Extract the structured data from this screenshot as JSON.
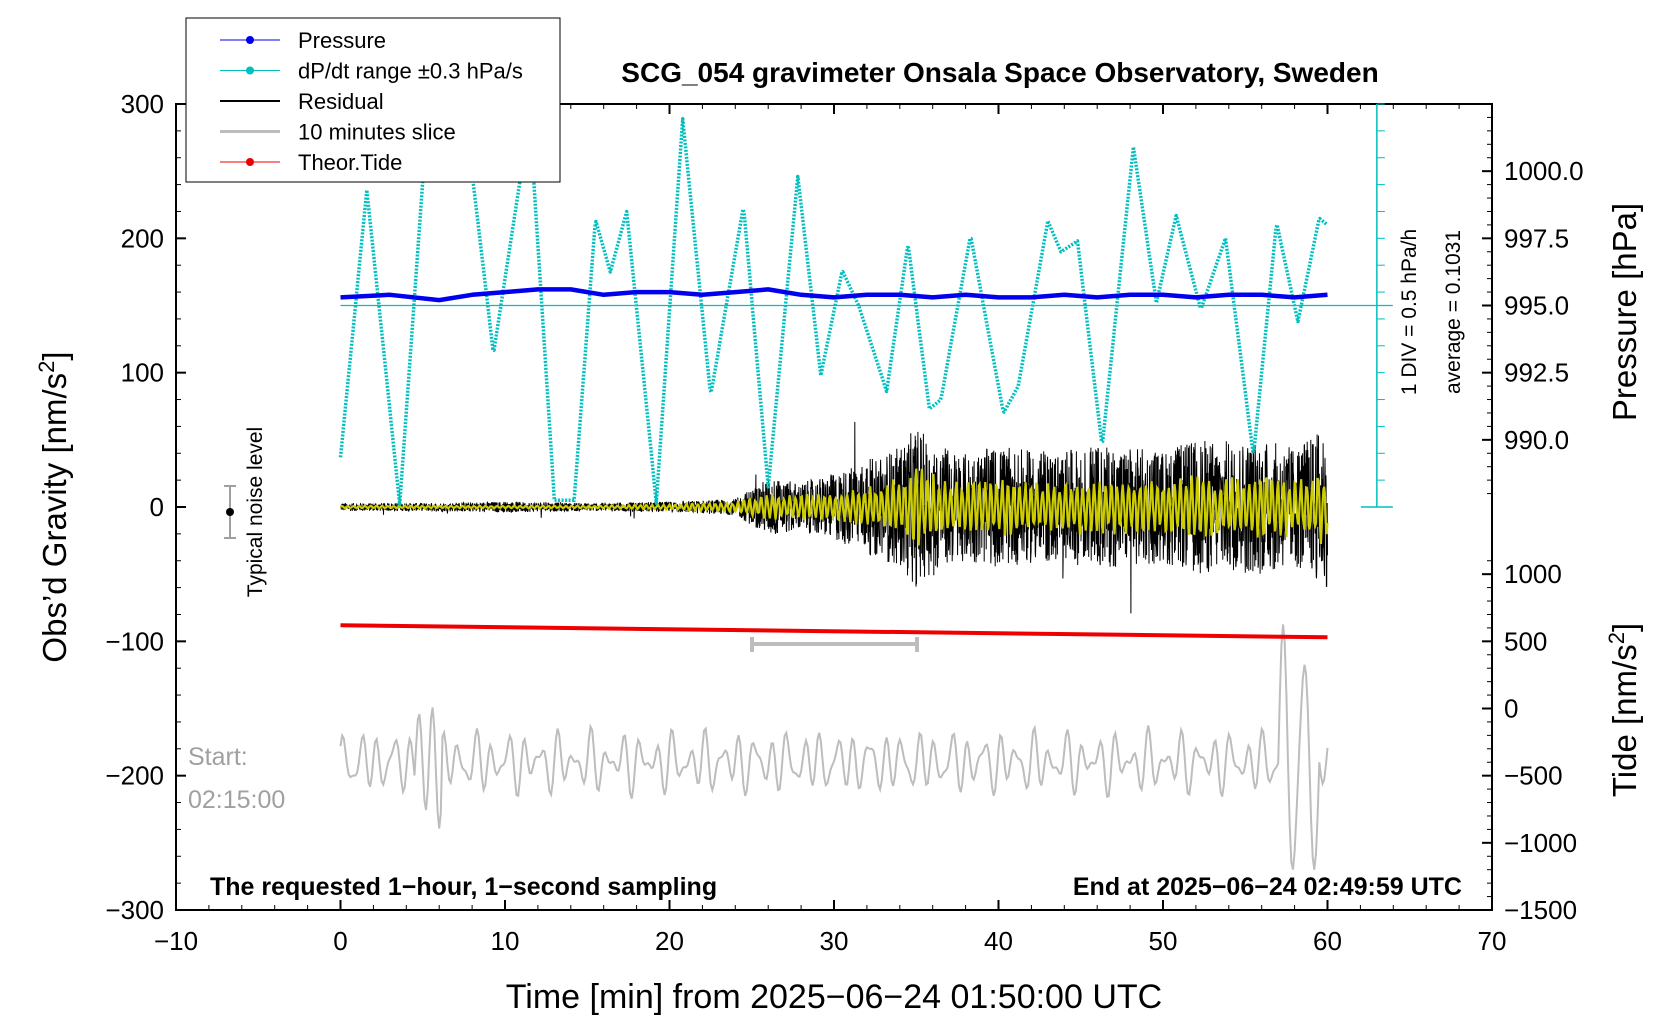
{
  "chart_data": {
    "type": "line",
    "title": "SCG_054 gravimeter Onsala Space Observatory, Sweden",
    "xlabel": "Time [min] from 2025−06−24 01:50:00 UTC",
    "ylabel_left": "Obs’d Gravity [nm/s²]",
    "ylabel_left_main": "Obs’d Gravity [nm/s",
    "ylabel_left_sup": "2",
    "ylabel_left_end": "]",
    "ylabel_right_pressure": "Pressure [hPa]",
    "ylabel_right_tide": "Tide [nm/s²]",
    "ylabel_right_tide_main": "Tide [nm/s",
    "ylabel_right_tide_sup": "2",
    "ylabel_right_tide_end": "]",
    "xlim": [
      -10,
      70
    ],
    "ylim": [
      -300,
      300
    ],
    "x_ticks": [
      -10,
      0,
      10,
      20,
      30,
      40,
      50,
      60,
      70
    ],
    "x_tick_labels": [
      "−10",
      "0",
      "10",
      "20",
      "30",
      "40",
      "50",
      "60",
      "70"
    ],
    "y_ticks": [
      -300,
      -200,
      -100,
      0,
      100,
      200,
      300
    ],
    "y_tick_labels": [
      "−300",
      "−200",
      "−100",
      "0",
      "100",
      "200",
      "300"
    ],
    "pressure_axis": {
      "ticks": [
        990.0,
        992.5,
        995.0,
        997.5,
        1000.0
      ],
      "labels": [
        "990.0",
        "992.5",
        "995.0",
        "997.5",
        "1000.0"
      ],
      "gravity_at_990": 50,
      "gravity_per_hPa": 20
    },
    "tide_axis": {
      "ticks": [
        -1500,
        -1000,
        -500,
        0,
        500,
        1000
      ],
      "labels": [
        "−1500",
        "−1000",
        "−500",
        "0",
        "500",
        "1000"
      ],
      "gravity_per_unit": 0.1,
      "offset": -150
    },
    "legend": {
      "position": "top-left",
      "entries": [
        {
          "label": "Pressure",
          "color": "#0000ee",
          "marker": true
        },
        {
          "label": "dP/dt range ±0.3 hPa/s",
          "color": "#00bfbf",
          "marker": true
        },
        {
          "label": "Residual",
          "color": "#000000",
          "marker": false
        },
        {
          "label": "10 minutes slice",
          "color": "#bdbdbd",
          "marker": false
        },
        {
          "label": "Theor.Tide",
          "color": "#ee0000",
          "marker": true
        }
      ]
    },
    "series": [
      {
        "name": "Pressure",
        "color": "#0000ee",
        "x": [
          0,
          3,
          6,
          8,
          10,
          12,
          14,
          16,
          18,
          20,
          22,
          24,
          26,
          28,
          30,
          32,
          34,
          36,
          38,
          40,
          42,
          44,
          46,
          48,
          50,
          52,
          54,
          56,
          58,
          60
        ],
        "y": [
          995.3,
          995.4,
          995.2,
          995.4,
          995.5,
          995.6,
          995.6,
          995.4,
          995.5,
          995.5,
          995.4,
          995.5,
          995.6,
          995.4,
          995.3,
          995.4,
          995.4,
          995.3,
          995.4,
          995.3,
          995.3,
          995.4,
          995.3,
          995.4,
          995.4,
          995.3,
          995.4,
          995.4,
          995.3,
          995.4
        ]
      },
      {
        "name": "dP/dt",
        "color": "#00bfbf",
        "x": [
          0,
          1.6,
          3.6,
          5.3,
          7.5,
          9.3,
          11.5,
          13,
          14.2,
          15.5,
          16.4,
          17.4,
          19.2,
          20.8,
          22.5,
          24.5,
          26,
          27.8,
          29.2,
          30.5,
          31.5,
          33.2,
          34.5,
          35.8,
          36.5,
          38.3,
          40.3,
          41.2,
          43,
          43.8,
          44.8,
          46.3,
          48.2,
          49.6,
          50.8,
          52.3,
          53.8,
          55.5,
          56.9,
          58.2,
          59.5,
          60
        ],
        "y": [
          37,
          236,
          2,
          295,
          300,
          114,
          290,
          5,
          5,
          214,
          175,
          220,
          3,
          289,
          83,
          224,
          15,
          246,
          98,
          176,
          150,
          86,
          196,
          73,
          80,
          202,
          70,
          90,
          213,
          190,
          198,
          45,
          268,
          152,
          217,
          147,
          200,
          38,
          212,
          138,
          215,
          210
        ]
      },
      {
        "name": "Residual",
        "color": "#000000",
        "x": [
          0,
          5,
          10,
          15,
          20,
          24,
          26,
          28,
          30,
          32,
          34,
          35,
          36,
          38,
          40,
          42,
          44,
          46,
          48,
          50,
          52,
          54,
          56,
          58,
          60
        ],
        "amplitude": [
          3,
          3,
          4,
          3,
          4,
          6,
          22,
          18,
          25,
          35,
          45,
          60,
          48,
          40,
          45,
          42,
          42,
          45,
          45,
          42,
          50,
          50,
          50,
          45,
          60
        ]
      },
      {
        "name": "Residual (filtered)",
        "color": "#cccc00",
        "x": [
          0,
          5,
          10,
          15,
          20,
          24,
          26,
          28,
          30,
          32,
          34,
          35,
          36,
          38,
          40,
          42,
          44,
          46,
          48,
          50,
          52,
          54,
          56,
          58,
          60
        ],
        "amplitude": [
          1,
          1,
          1,
          1,
          2,
          4,
          10,
          10,
          12,
          16,
          22,
          35,
          25,
          20,
          22,
          20,
          20,
          22,
          22,
          20,
          24,
          24,
          26,
          22,
          30
        ]
      },
      {
        "name": "Theor.Tide",
        "color": "#ee0000",
        "x": [
          0,
          60
        ],
        "y": [
          -88,
          -97
        ]
      },
      {
        "name": "10 minutes slice",
        "color": "#bdbdbd",
        "x_range": [
          0,
          60
        ],
        "baseline": -190,
        "amplitude": 25
      }
    ],
    "annotations": {
      "noise_level_label": "Typical noise level",
      "noise_level": {
        "x": -7,
        "y": 0,
        "error": 20
      },
      "slice_bar": {
        "x_start": 25,
        "x_end": 35,
        "y": -100
      },
      "start_label": "Start:",
      "start_time": "02:15:00",
      "bottom_left": "The requested 1−hour, 1−second sampling",
      "bottom_right": "End at 2025−06−24 02:49:59 UTC",
      "scale_div": "1 DIV = 0.5 hPa/h",
      "scale_avg": "average = 0.1031",
      "scale_bar": {
        "x": 63,
        "y_top": 300,
        "y_bottom": 0,
        "mid_y": 150,
        "divisions": 15
      }
    },
    "colors": {
      "pressure": "#0000ee",
      "dpdt": "#00bfbf",
      "residual": "#000000",
      "filtered": "#cccc00",
      "slice": "#bdbdbd",
      "tide": "#ee0000",
      "annotation_gray": "#a0a0a0"
    }
  }
}
